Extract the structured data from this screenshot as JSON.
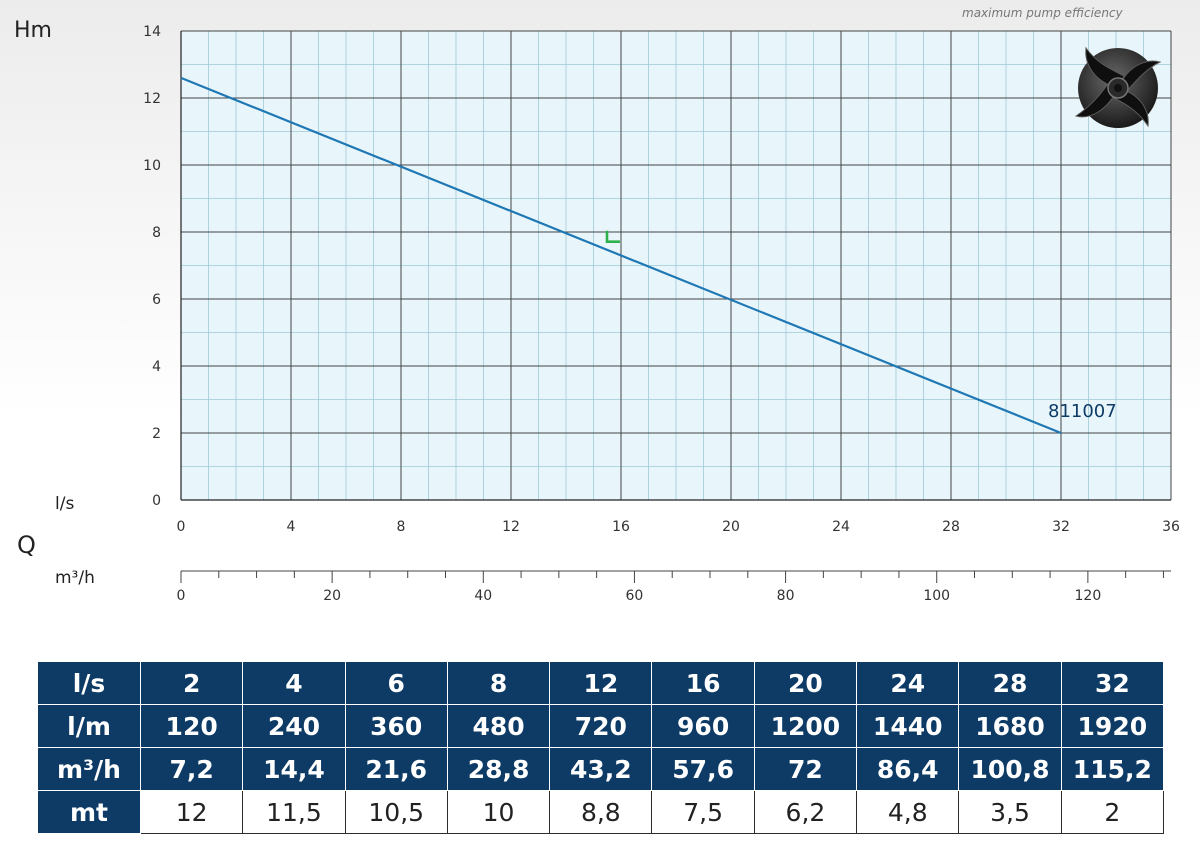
{
  "header": {
    "y_axis_unit": "Hm",
    "x_axis_unit_ls": "l/s",
    "q_label": "Q",
    "x_axis_unit_m3h": "m³/h",
    "note": "maximum pump efficiency"
  },
  "chart_data": {
    "type": "line",
    "xlabel": "l/s",
    "ylabel": "Hm",
    "xlim": [
      0,
      36
    ],
    "ylim": [
      0,
      14
    ],
    "x_ticks": [
      "0",
      "4",
      "8",
      "12",
      "16",
      "20",
      "24",
      "28",
      "32",
      "36"
    ],
    "y_ticks": [
      "0",
      "2",
      "4",
      "6",
      "8",
      "10",
      "12",
      "14"
    ],
    "secondary_x_axis": {
      "label": "m³/h",
      "range": [
        0,
        131
      ],
      "ticks": [
        "0",
        "20",
        "40",
        "60",
        "80",
        "100",
        "120"
      ]
    },
    "grid": true,
    "series": [
      {
        "name": "811007",
        "color": "#1f78b4",
        "x": [
          0,
          32
        ],
        "y": [
          12.6,
          2
        ]
      }
    ],
    "efficiency_marker": {
      "x": 15.6,
      "y": 7.8,
      "color": "#2db14a"
    },
    "background_color": "#e8f6fb"
  },
  "table": {
    "rows": [
      {
        "label": "l/s",
        "values": [
          "2",
          "4",
          "6",
          "8",
          "12",
          "16",
          "20",
          "24",
          "28",
          "32"
        ],
        "header": true
      },
      {
        "label": "l/m",
        "values": [
          "120",
          "240",
          "360",
          "480",
          "720",
          "960",
          "1200",
          "1440",
          "1680",
          "1920"
        ],
        "header": true
      },
      {
        "label": "m³/h",
        "values": [
          "7,2",
          "14,4",
          "21,6",
          "28,8",
          "43,2",
          "57,6",
          "72",
          "86,4",
          "100,8",
          "115,2"
        ],
        "header": true
      },
      {
        "label": "mt",
        "values": [
          "12",
          "11,5",
          "10,5",
          "10",
          "8,8",
          "7,5",
          "6,2",
          "4,8",
          "3,5",
          "2"
        ],
        "header": false
      }
    ]
  },
  "colors": {
    "table_header": "#0d3b66",
    "curve": "#1f78b4",
    "grid_line": "#444444",
    "minor_grid": "#9fc9d8"
  }
}
